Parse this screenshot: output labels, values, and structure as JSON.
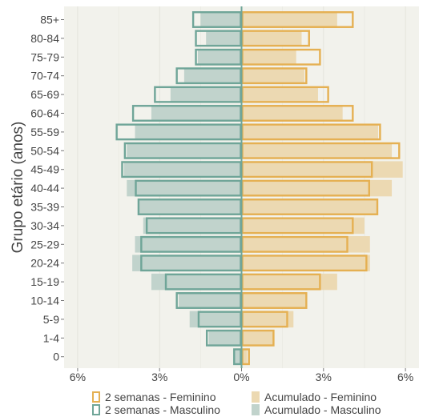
{
  "chart_data": {
    "type": "bar",
    "orientation": "horizontal",
    "layout": "population-pyramid",
    "ylabel": "Grupo etário (anos)",
    "xlabel": "",
    "xlim": [
      -6.5,
      6.5
    ],
    "x_ticks": [
      {
        "value": -6,
        "label": "6%"
      },
      {
        "value": -3,
        "label": "3%"
      },
      {
        "value": 0,
        "label": "0%"
      },
      {
        "value": 3,
        "label": "3%"
      },
      {
        "value": 6,
        "label": "6%"
      }
    ],
    "grid": true,
    "legend_position": "bottom",
    "categories": [
      "85+",
      "80-84",
      "75-79",
      "70-74",
      "65-69",
      "60-64",
      "55-59",
      "50-54",
      "45-49",
      "40-44",
      "35-39",
      "30-34",
      "25-29",
      "20-24",
      "15-19",
      "10-14",
      "5-9",
      "1-4",
      "0"
    ],
    "series": [
      {
        "name": "2 semanas - Feminino",
        "side": "right",
        "style": "outline",
        "color": "#e5b052",
        "values": [
          4.1,
          2.5,
          2.9,
          2.4,
          3.2,
          4.1,
          5.1,
          5.8,
          4.8,
          4.7,
          5.0,
          4.1,
          3.9,
          4.6,
          2.9,
          2.4,
          1.7,
          1.2,
          0.3
        ]
      },
      {
        "name": "2 semanas - Masculino",
        "side": "left",
        "style": "outline",
        "color": "#6fa598",
        "values": [
          1.8,
          1.7,
          1.7,
          2.4,
          3.2,
          4.0,
          4.6,
          4.3,
          4.4,
          3.9,
          3.8,
          3.5,
          3.7,
          3.7,
          2.8,
          2.4,
          1.6,
          1.3,
          0.3
        ]
      },
      {
        "name": "Acumulado - Feminino",
        "side": "right",
        "style": "fill",
        "color": "#ecd9b2",
        "values": [
          3.5,
          2.2,
          2.0,
          2.3,
          2.8,
          3.7,
          5.0,
          5.5,
          5.9,
          5.5,
          5.0,
          4.5,
          4.7,
          4.7,
          3.5,
          2.4,
          1.9,
          1.2,
          0.2
        ]
      },
      {
        "name": "Acumulado - Masculino",
        "side": "left",
        "style": "fill",
        "color": "#c1d3cc",
        "values": [
          1.5,
          1.3,
          1.6,
          2.1,
          2.6,
          3.3,
          3.9,
          4.2,
          4.3,
          4.2,
          3.8,
          3.6,
          3.9,
          4.0,
          3.3,
          2.3,
          1.9,
          1.2,
          0.3
        ]
      }
    ]
  },
  "colors": {
    "panel_bg": "#f2f2ec",
    "grid": "#e4e4dc",
    "text": "#444444"
  }
}
